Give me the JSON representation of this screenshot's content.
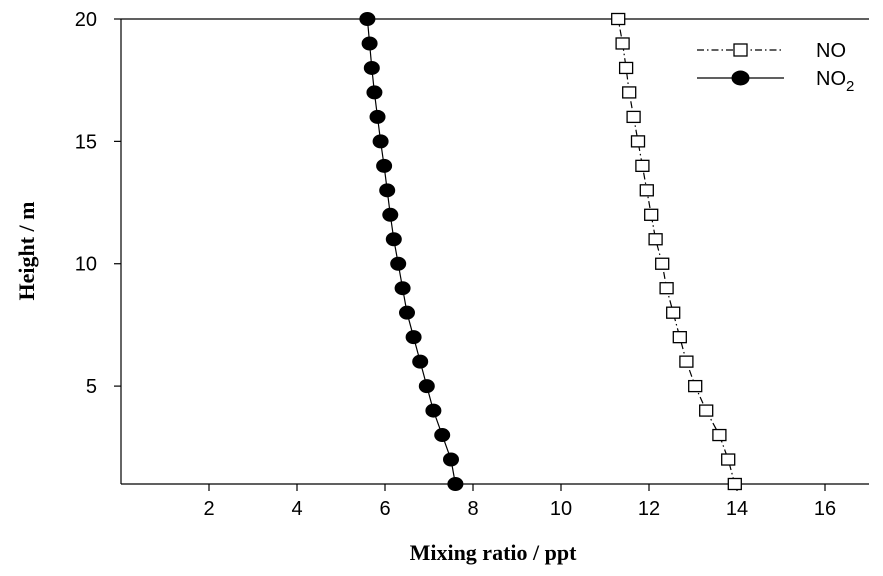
{
  "chart_data": {
    "type": "line",
    "xlabel": "Mixing ratio / ppt",
    "ylabel": "Height / m",
    "xlim": [
      0,
      17
    ],
    "ylim": [
      1,
      20
    ],
    "xticks": [
      2,
      4,
      6,
      8,
      10,
      12,
      14,
      16
    ],
    "yticks": [
      5,
      10,
      15,
      20
    ],
    "grid": false,
    "legend_position": "top-right",
    "series": [
      {
        "name": "NO",
        "marker": "open-square",
        "line_style": "dash-dot",
        "color": "#000000",
        "points": [
          {
            "x": 13.95,
            "y": 1
          },
          {
            "x": 13.8,
            "y": 2
          },
          {
            "x": 13.6,
            "y": 3
          },
          {
            "x": 13.3,
            "y": 4
          },
          {
            "x": 13.05,
            "y": 5
          },
          {
            "x": 12.85,
            "y": 6
          },
          {
            "x": 12.7,
            "y": 7
          },
          {
            "x": 12.55,
            "y": 8
          },
          {
            "x": 12.4,
            "y": 9
          },
          {
            "x": 12.3,
            "y": 10
          },
          {
            "x": 12.15,
            "y": 11
          },
          {
            "x": 12.05,
            "y": 12
          },
          {
            "x": 11.95,
            "y": 13
          },
          {
            "x": 11.85,
            "y": 14
          },
          {
            "x": 11.75,
            "y": 15
          },
          {
            "x": 11.65,
            "y": 16
          },
          {
            "x": 11.55,
            "y": 17
          },
          {
            "x": 11.48,
            "y": 18
          },
          {
            "x": 11.4,
            "y": 19
          },
          {
            "x": 11.3,
            "y": 20
          }
        ]
      },
      {
        "name": "NO2",
        "marker": "filled-circle",
        "line_style": "solid",
        "color": "#000000",
        "points": [
          {
            "x": 7.6,
            "y": 1
          },
          {
            "x": 7.5,
            "y": 2
          },
          {
            "x": 7.3,
            "y": 3
          },
          {
            "x": 7.1,
            "y": 4
          },
          {
            "x": 6.95,
            "y": 5
          },
          {
            "x": 6.8,
            "y": 6
          },
          {
            "x": 6.65,
            "y": 7
          },
          {
            "x": 6.5,
            "y": 8
          },
          {
            "x": 6.4,
            "y": 9
          },
          {
            "x": 6.3,
            "y": 10
          },
          {
            "x": 6.2,
            "y": 11
          },
          {
            "x": 6.12,
            "y": 12
          },
          {
            "x": 6.05,
            "y": 13
          },
          {
            "x": 5.98,
            "y": 14
          },
          {
            "x": 5.9,
            "y": 15
          },
          {
            "x": 5.83,
            "y": 16
          },
          {
            "x": 5.76,
            "y": 17
          },
          {
            "x": 5.7,
            "y": 18
          },
          {
            "x": 5.65,
            "y": 19
          },
          {
            "x": 5.6,
            "y": 20
          }
        ]
      }
    ],
    "legend": [
      {
        "series": "NO",
        "label": "NO",
        "subscript": ""
      },
      {
        "series": "NO2",
        "label": "NO",
        "subscript": "2"
      }
    ]
  }
}
